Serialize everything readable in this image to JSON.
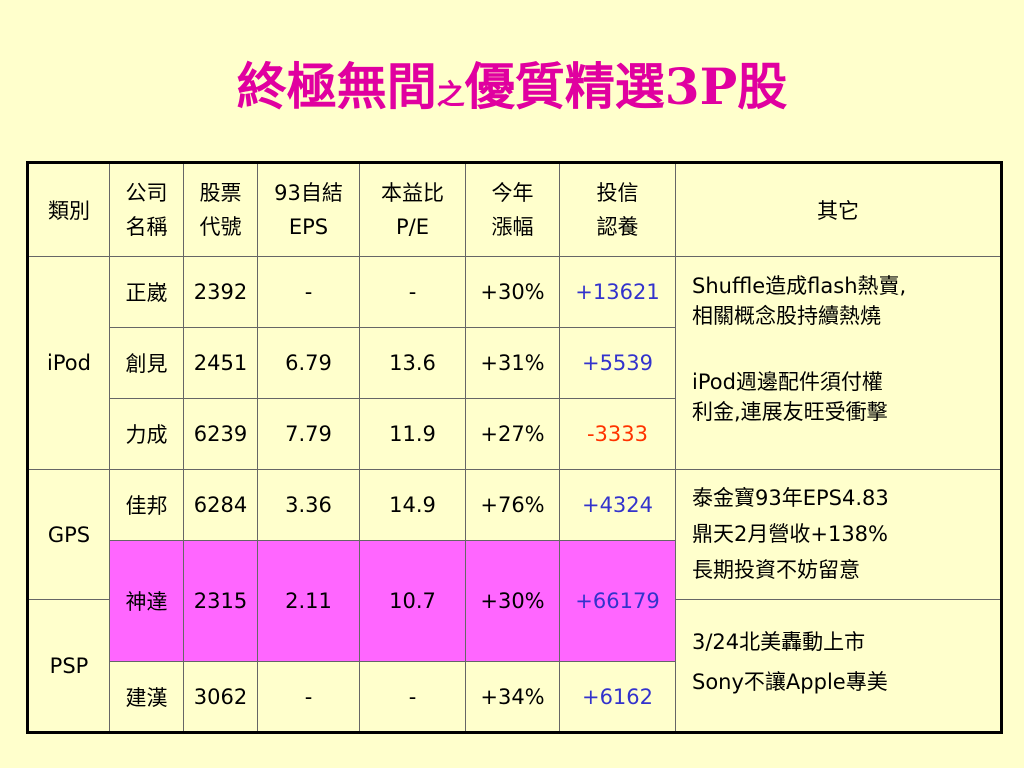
{
  "title": {
    "main": "終極無間",
    "small": "之",
    "rest": "優質精選3P股"
  },
  "headers": {
    "category": "類別",
    "company": [
      "公司",
      "名稱"
    ],
    "code": [
      "股票",
      "代號"
    ],
    "eps": [
      "93自結",
      "EPS"
    ],
    "pe": [
      "本益比",
      "P/E"
    ],
    "ytd": [
      "今年",
      "漲幅"
    ],
    "trust": [
      "投信",
      "認養"
    ],
    "other": "其它"
  },
  "categories": {
    "ipod": "iPod",
    "gps": "GPS",
    "psp": "PSP"
  },
  "rows": [
    {
      "name": "正崴",
      "code": "2392",
      "eps": "-",
      "pe": "-",
      "ytd": "+30%",
      "trust": "+13621"
    },
    {
      "name": "創見",
      "code": "2451",
      "eps": "6.79",
      "pe": "13.6",
      "ytd": "+31%",
      "trust": "+5539"
    },
    {
      "name": "力成",
      "code": "6239",
      "eps": "7.79",
      "pe": "11.9",
      "ytd": "+27%",
      "trust": "-3333"
    },
    {
      "name": "佳邦",
      "code": "6284",
      "eps": "3.36",
      "pe": "14.9",
      "ytd": "+76%",
      "trust": "+4324"
    },
    {
      "name": "神達",
      "code": "2315",
      "eps": "2.11",
      "pe": "10.7",
      "ytd": "+30%",
      "trust": "+66179"
    },
    {
      "name": "建漢",
      "code": "3062",
      "eps": "-",
      "pe": "-",
      "ytd": "+34%",
      "trust": "+6162"
    }
  ],
  "notes": {
    "ipod": [
      "Shuffle造成flash熱賣,",
      "相關概念股持續熱燒",
      "iPod週邊配件須付權",
      "利金,連展友旺受衝擊"
    ],
    "gps": [
      "泰金寶93年EPS4.83",
      "鼎天2月營收+138%",
      "長期投資不妨留意"
    ],
    "psp": [
      "3/24北美轟動上市",
      "Sony不讓Apple專美"
    ]
  },
  "colors": {
    "title": "#E000A0",
    "background": "#FFFFCC",
    "highlight_row": "#FF66FF",
    "positive": "#3333CC",
    "negative": "#FF3300"
  }
}
